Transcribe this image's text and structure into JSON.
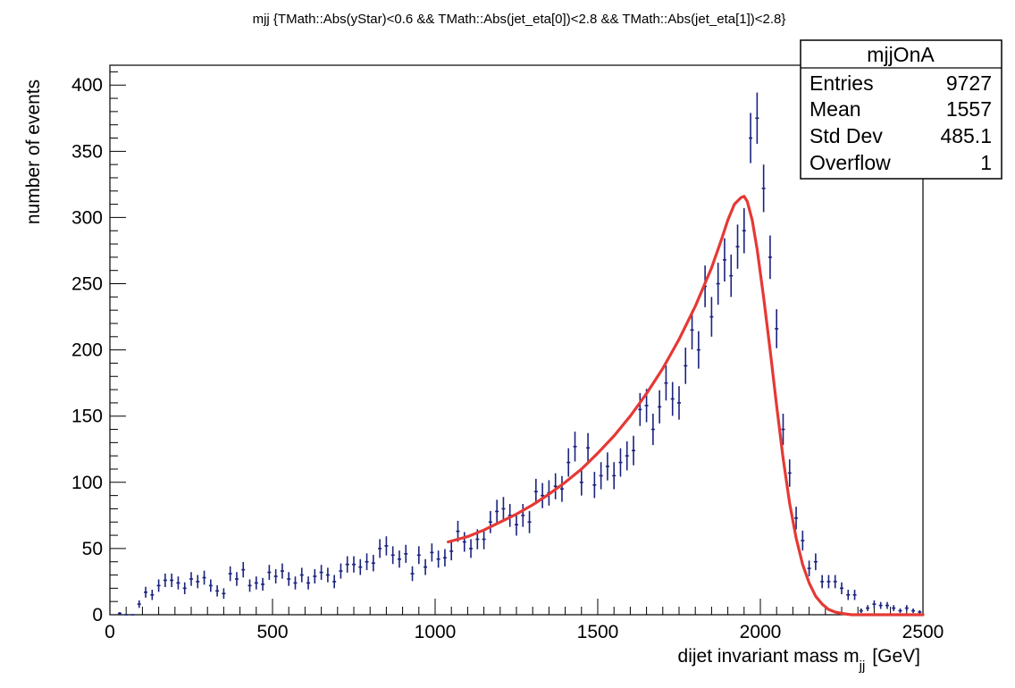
{
  "chart_data": {
    "type": "histogram",
    "title": "mjj {TMath::Abs(yStar)<0.6 && TMath::Abs(jet_eta[0])<2.8 && TMath::Abs(jet_eta[1])<2.8}",
    "xlabel": "dijet invariant mass m",
    "xlabel_sub": "jj",
    "xlabel_unit": "[GeV]",
    "ylabel": "number of events",
    "xlim": [
      0,
      2500
    ],
    "ylim": [
      0,
      415
    ],
    "x_ticks": [
      0,
      500,
      1000,
      1500,
      2000,
      2500
    ],
    "y_ticks": [
      0,
      50,
      100,
      150,
      200,
      250,
      300,
      350,
      400
    ],
    "grid": false,
    "bin_width": 20,
    "series": [
      {
        "name": "mjjOnA",
        "kind": "points-with-errors",
        "color": "#1a237e",
        "points": [
          [
            30,
            1
          ],
          [
            50,
            0
          ],
          [
            70,
            0
          ],
          [
            90,
            8
          ],
          [
            110,
            17
          ],
          [
            130,
            15
          ],
          [
            150,
            22
          ],
          [
            170,
            26
          ],
          [
            190,
            26
          ],
          [
            210,
            24
          ],
          [
            230,
            20
          ],
          [
            250,
            27
          ],
          [
            270,
            25
          ],
          [
            290,
            28
          ],
          [
            310,
            22
          ],
          [
            330,
            18
          ],
          [
            350,
            16
          ],
          [
            370,
            31
          ],
          [
            390,
            27
          ],
          [
            410,
            34
          ],
          [
            430,
            22
          ],
          [
            450,
            24
          ],
          [
            470,
            23
          ],
          [
            490,
            32
          ],
          [
            510,
            29
          ],
          [
            530,
            33
          ],
          [
            550,
            27
          ],
          [
            570,
            24
          ],
          [
            590,
            30
          ],
          [
            610,
            24
          ],
          [
            630,
            29
          ],
          [
            650,
            32
          ],
          [
            670,
            30
          ],
          [
            690,
            25
          ],
          [
            710,
            33
          ],
          [
            730,
            38
          ],
          [
            750,
            38
          ],
          [
            770,
            36
          ],
          [
            790,
            40
          ],
          [
            810,
            39
          ],
          [
            830,
            50
          ],
          [
            850,
            52
          ],
          [
            870,
            45
          ],
          [
            890,
            42
          ],
          [
            910,
            46
          ],
          [
            930,
            31
          ],
          [
            950,
            45
          ],
          [
            970,
            36
          ],
          [
            990,
            47
          ],
          [
            1010,
            42
          ],
          [
            1030,
            43
          ],
          [
            1050,
            48
          ],
          [
            1070,
            63
          ],
          [
            1090,
            55
          ],
          [
            1110,
            50
          ],
          [
            1130,
            57
          ],
          [
            1150,
            57
          ],
          [
            1170,
            70
          ],
          [
            1190,
            78
          ],
          [
            1210,
            80
          ],
          [
            1230,
            75
          ],
          [
            1250,
            68
          ],
          [
            1270,
            75
          ],
          [
            1290,
            70
          ],
          [
            1310,
            93
          ],
          [
            1330,
            90
          ],
          [
            1350,
            92
          ],
          [
            1370,
            97
          ],
          [
            1390,
            95
          ],
          [
            1410,
            115
          ],
          [
            1430,
            127
          ],
          [
            1450,
            100
          ],
          [
            1470,
            126
          ],
          [
            1490,
            98
          ],
          [
            1510,
            105
          ],
          [
            1530,
            112
          ],
          [
            1550,
            105
          ],
          [
            1570,
            115
          ],
          [
            1590,
            120
          ],
          [
            1610,
            124
          ],
          [
            1630,
            155
          ],
          [
            1650,
            158
          ],
          [
            1670,
            140
          ],
          [
            1690,
            157
          ],
          [
            1710,
            175
          ],
          [
            1730,
            163
          ],
          [
            1750,
            160
          ],
          [
            1770,
            188
          ],
          [
            1790,
            215
          ],
          [
            1810,
            200
          ],
          [
            1830,
            248
          ],
          [
            1850,
            225
          ],
          [
            1870,
            250
          ],
          [
            1890,
            268
          ],
          [
            1910,
            256
          ],
          [
            1930,
            278
          ],
          [
            1950,
            290
          ],
          [
            1970,
            360
          ],
          [
            1990,
            375
          ],
          [
            2010,
            322
          ],
          [
            2030,
            270
          ],
          [
            2050,
            216
          ],
          [
            2070,
            140
          ],
          [
            2090,
            107
          ],
          [
            2110,
            73
          ],
          [
            2130,
            56
          ],
          [
            2150,
            35
          ],
          [
            2170,
            40
          ],
          [
            2190,
            25
          ],
          [
            2210,
            25
          ],
          [
            2230,
            25
          ],
          [
            2250,
            20
          ],
          [
            2270,
            15
          ],
          [
            2290,
            15
          ],
          [
            2310,
            3
          ],
          [
            2330,
            5
          ],
          [
            2350,
            8
          ],
          [
            2370,
            7
          ],
          [
            2390,
            7
          ],
          [
            2410,
            5
          ],
          [
            2430,
            3
          ],
          [
            2450,
            5
          ],
          [
            2470,
            3
          ],
          [
            2490,
            2
          ]
        ]
      },
      {
        "name": "fit",
        "kind": "line",
        "color": "#e53935",
        "points": [
          [
            1040,
            55
          ],
          [
            1100,
            59
          ],
          [
            1150,
            64
          ],
          [
            1200,
            70
          ],
          [
            1250,
            76
          ],
          [
            1300,
            83
          ],
          [
            1350,
            91
          ],
          [
            1400,
            100
          ],
          [
            1450,
            110
          ],
          [
            1500,
            122
          ],
          [
            1550,
            135
          ],
          [
            1600,
            150
          ],
          [
            1650,
            167
          ],
          [
            1700,
            186
          ],
          [
            1750,
            208
          ],
          [
            1800,
            233
          ],
          [
            1850,
            262
          ],
          [
            1880,
            283
          ],
          [
            1900,
            298
          ],
          [
            1920,
            310
          ],
          [
            1940,
            315
          ],
          [
            1950,
            316
          ],
          [
            1960,
            312
          ],
          [
            1975,
            298
          ],
          [
            1990,
            276
          ],
          [
            2010,
            240
          ],
          [
            2030,
            200
          ],
          [
            2050,
            158
          ],
          [
            2070,
            118
          ],
          [
            2090,
            84
          ],
          [
            2110,
            58
          ],
          [
            2130,
            38
          ],
          [
            2150,
            24
          ],
          [
            2170,
            14
          ],
          [
            2190,
            8
          ],
          [
            2210,
            4
          ],
          [
            2230,
            2
          ],
          [
            2250,
            1
          ],
          [
            2280,
            0
          ],
          [
            2350,
            0
          ],
          [
            2500,
            0
          ]
        ]
      }
    ],
    "stats_box": {
      "title": "mjjOnA",
      "placement": "top-right",
      "rows": [
        {
          "label": "Entries",
          "value": "9727"
        },
        {
          "label": "Mean",
          "value": "1557"
        },
        {
          "label": "Std Dev",
          "value": "485.1"
        },
        {
          "label": "Overflow",
          "value": "1"
        }
      ]
    }
  }
}
